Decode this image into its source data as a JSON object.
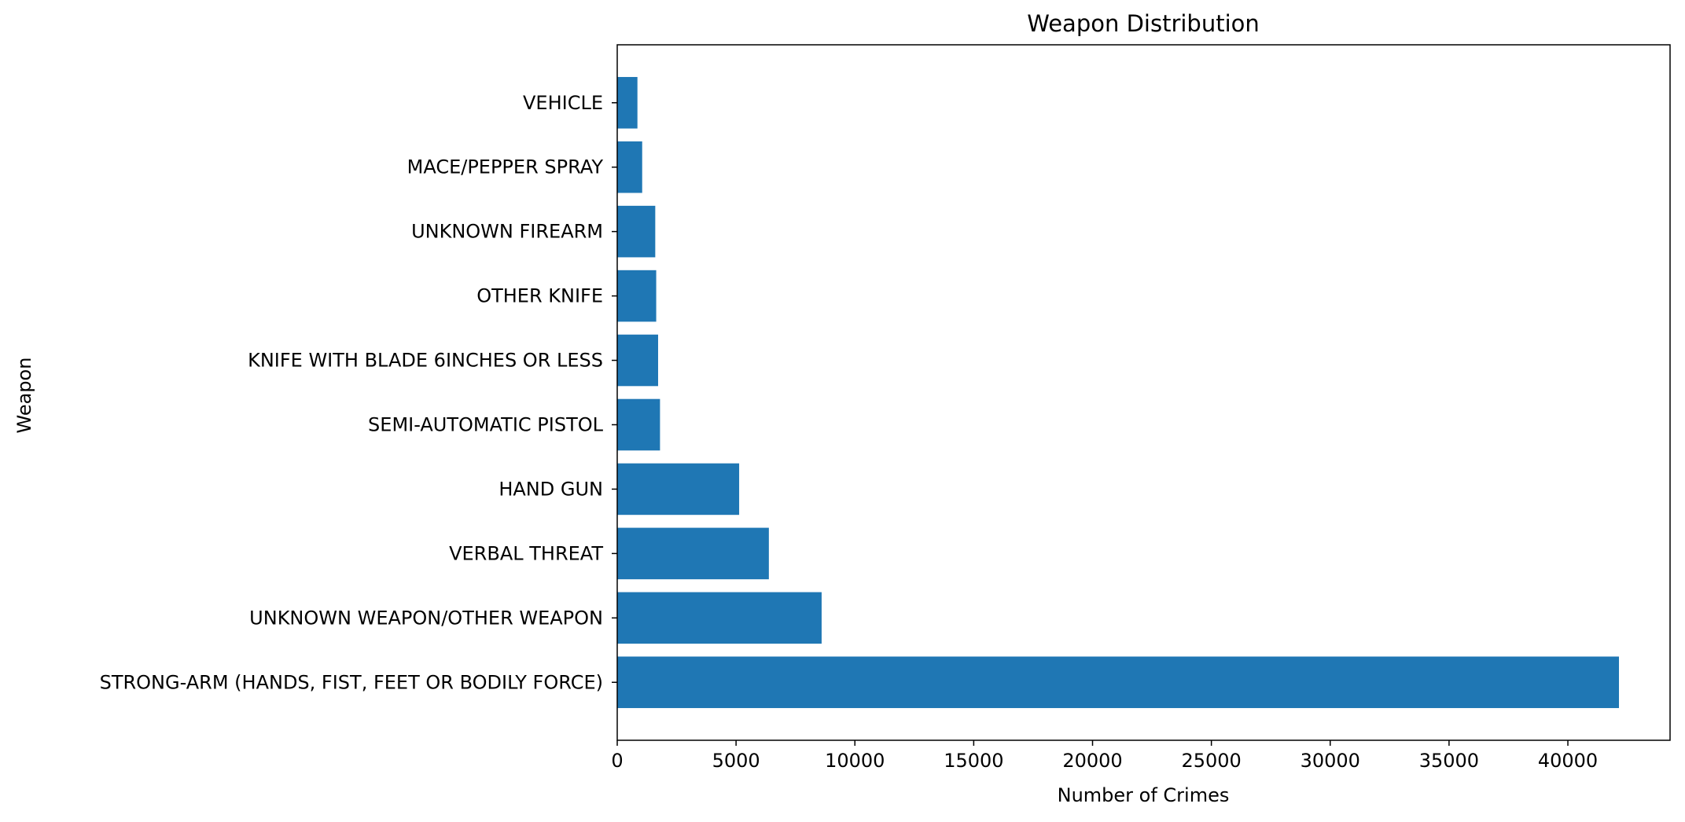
{
  "chart_data": {
    "type": "bar",
    "orientation": "horizontal",
    "title": "Weapon Distribution",
    "xlabel": "Number of Crimes",
    "ylabel": "Weapon",
    "xlim": [
      0,
      44300
    ],
    "xticks": [
      0,
      5000,
      10000,
      15000,
      20000,
      25000,
      30000,
      35000,
      40000
    ],
    "grid": false,
    "bar_color": "#1f77b4",
    "categories": [
      "STRONG-ARM (HANDS, FIST, FEET OR BODILY FORCE)",
      "UNKNOWN WEAPON/OTHER WEAPON",
      "VERBAL THREAT",
      "HAND GUN",
      "SEMI-AUTOMATIC PISTOL",
      "KNIFE WITH BLADE 6INCHES OR LESS",
      "OTHER KNIFE",
      "UNKNOWN FIREARM",
      "MACE/PEPPER SPRAY",
      "VEHICLE"
    ],
    "values": [
      42150,
      8600,
      6380,
      5130,
      1800,
      1720,
      1640,
      1600,
      1050,
      850
    ]
  }
}
